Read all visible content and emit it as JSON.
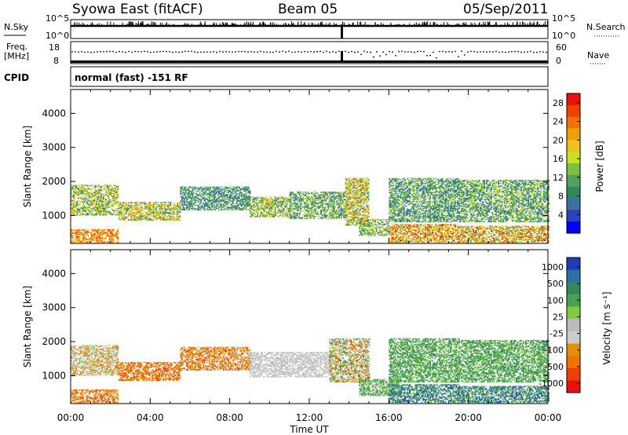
{
  "header": {
    "station": "Syowa East (fitACF)",
    "beam": "Beam 05",
    "date": "05/Sep/2011"
  },
  "labels": {
    "nsky": "N.Sky",
    "nsearch": "N.Search",
    "freq_top": "Freq.",
    "freq_unit": "[MHz]",
    "nave": "Nave",
    "cpid": "CPID",
    "cpid_value": "normal (fast) -151 RF",
    "nsky_top": "10^5",
    "nsky_bottom": "10^0",
    "nsearch_top": "10^5",
    "nsearch_bottom": "10^0",
    "freq_high": "18",
    "freq_low": "8",
    "nave_high": "60",
    "nave_low": "0",
    "ylabel": "Slant Range [km]",
    "xlabel": "Time UT",
    "power_label": "Power [dB]",
    "velocity_label": "Velocity [m s⁻¹]"
  },
  "colors": {
    "power_scale": [
      "#0000ff",
      "#2a43b8",
      "#3a6fa8",
      "#2e8b57",
      "#55a060",
      "#7dc040",
      "#c8e020",
      "#f0c020",
      "#f0a000",
      "#f07000",
      "#f04000",
      "#e81010"
    ],
    "velocity_scale": [
      "#1a3db8",
      "#2e6fa8",
      "#2e8b57",
      "#4aa050",
      "#7dcc40",
      "#bbbbbb",
      "#cccccc",
      "#e09000",
      "#f07000",
      "#f04000",
      "#e81010"
    ]
  },
  "chart_data": [
    {
      "type": "heatmap",
      "name": "power",
      "title": "",
      "xlabel": "Time UT",
      "ylabel": "Slant Range [km]",
      "xlim": [
        "00:00",
        "24:00"
      ],
      "ylim": [
        180,
        4700
      ],
      "xticks": [
        "00:00",
        "04:00",
        "08:00",
        "12:00",
        "16:00",
        "20:00",
        "00:00"
      ],
      "yticks": [
        1000,
        2000,
        3000,
        4000
      ],
      "colorbar": {
        "label": "Power [dB]",
        "ticks": [
          4,
          8,
          12,
          16,
          20,
          24,
          28
        ],
        "range": [
          0,
          30
        ]
      },
      "regions": [
        {
          "t0": 0.0,
          "t1": 2.4,
          "r0": 1000,
          "r1": 1900,
          "v0": 6,
          "v1": 22
        },
        {
          "t0": 0.0,
          "t1": 2.4,
          "r0": 200,
          "r1": 600,
          "v0": 18,
          "v1": 28
        },
        {
          "t0": 2.4,
          "t1": 5.5,
          "r0": 850,
          "r1": 1400,
          "v0": 8,
          "v1": 24
        },
        {
          "t0": 5.5,
          "t1": 9.0,
          "r0": 1150,
          "r1": 1850,
          "v0": 4,
          "v1": 14
        },
        {
          "t0": 9.0,
          "t1": 11.0,
          "r0": 950,
          "r1": 1550,
          "v0": 6,
          "v1": 22
        },
        {
          "t0": 11.0,
          "t1": 13.8,
          "r0": 900,
          "r1": 1700,
          "v0": 4,
          "v1": 18
        },
        {
          "t0": 13.8,
          "t1": 15.0,
          "r0": 700,
          "r1": 2100,
          "v0": 8,
          "v1": 26
        },
        {
          "t0": 14.5,
          "t1": 16.0,
          "r0": 400,
          "r1": 900,
          "v0": 6,
          "v1": 20
        },
        {
          "t0": 16.0,
          "t1": 19.5,
          "r0": 200,
          "r1": 750,
          "v0": 12,
          "v1": 30
        },
        {
          "t0": 16.0,
          "t1": 19.5,
          "r0": 800,
          "r1": 2100,
          "v0": 4,
          "v1": 16
        },
        {
          "t0": 19.5,
          "t1": 24.0,
          "r0": 200,
          "r1": 700,
          "v0": 10,
          "v1": 30
        },
        {
          "t0": 19.5,
          "t1": 24.0,
          "r0": 800,
          "r1": 2050,
          "v0": 4,
          "v1": 18
        }
      ]
    },
    {
      "type": "heatmap",
      "name": "velocity",
      "title": "",
      "xlabel": "Time UT",
      "ylabel": "Slant Range [km]",
      "xlim": [
        "00:00",
        "24:00"
      ],
      "ylim": [
        180,
        4700
      ],
      "xticks": [
        "00:00",
        "04:00",
        "08:00",
        "12:00",
        "16:00",
        "20:00",
        "00:00"
      ],
      "yticks": [
        1000,
        2000,
        3000,
        4000
      ],
      "colorbar": {
        "label": "Velocity [m s⁻¹]",
        "ticks": [
          "1000",
          "500",
          "100",
          "25",
          "-25",
          "-100",
          "-500",
          "-1000"
        ]
      },
      "regions": [
        {
          "t0": 0.0,
          "t1": 2.4,
          "r0": 1000,
          "r1": 1900,
          "v0": 4,
          "v1": 8
        },
        {
          "t0": 0.0,
          "t1": 2.4,
          "r0": 200,
          "r1": 600,
          "v0": 6,
          "v1": 9
        },
        {
          "t0": 2.4,
          "t1": 5.5,
          "r0": 850,
          "r1": 1400,
          "v0": 7,
          "v1": 9
        },
        {
          "t0": 5.5,
          "t1": 9.0,
          "r0": 1150,
          "r1": 1850,
          "v0": 6,
          "v1": 9
        },
        {
          "t0": 9.0,
          "t1": 13.0,
          "r0": 950,
          "r1": 1700,
          "v0": 5,
          "v1": 6
        },
        {
          "t0": 13.0,
          "t1": 15.0,
          "r0": 800,
          "r1": 2100,
          "v0": 2,
          "v1": 9
        },
        {
          "t0": 14.5,
          "t1": 16.5,
          "r0": 400,
          "r1": 900,
          "v0": 2,
          "v1": 5
        },
        {
          "t0": 16.0,
          "t1": 19.5,
          "r0": 200,
          "r1": 750,
          "v0": 0,
          "v1": 4
        },
        {
          "t0": 16.0,
          "t1": 19.5,
          "r0": 800,
          "r1": 2100,
          "v0": 2,
          "v1": 4
        },
        {
          "t0": 19.5,
          "t1": 24.0,
          "r0": 200,
          "r1": 700,
          "v0": 0,
          "v1": 4
        },
        {
          "t0": 19.5,
          "t1": 24.0,
          "r0": 800,
          "r1": 2050,
          "v0": 2,
          "v1": 4
        }
      ]
    }
  ]
}
